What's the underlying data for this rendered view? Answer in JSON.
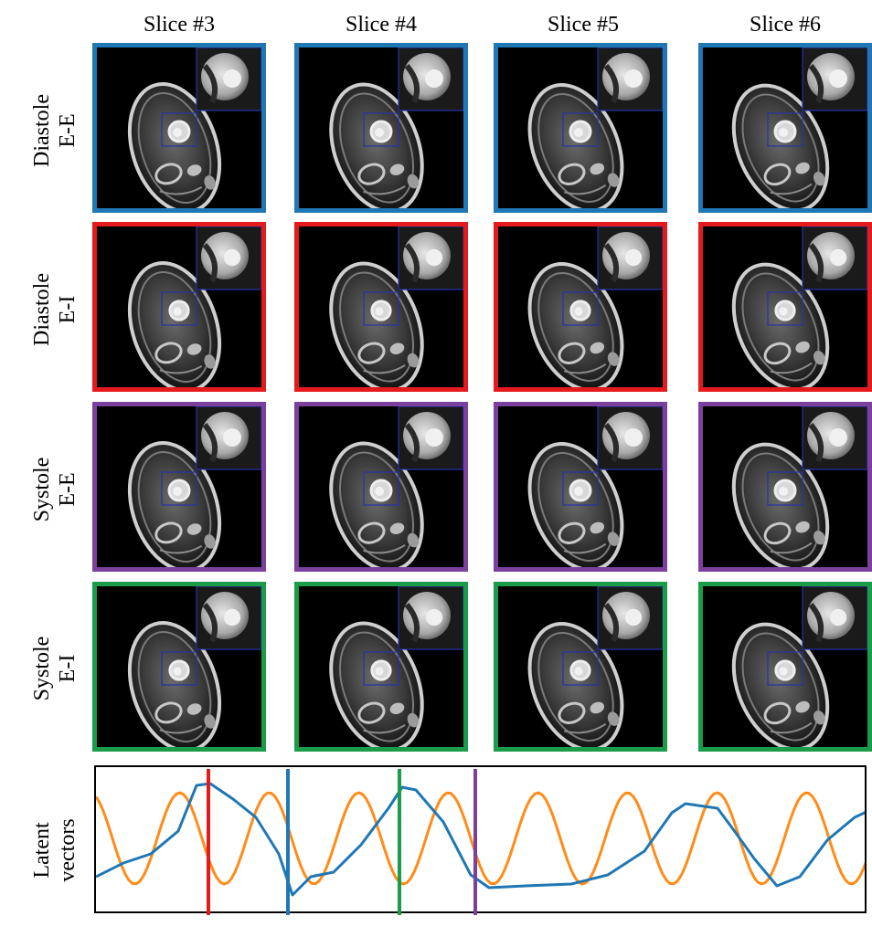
{
  "columns": [
    "Slice #3",
    "Slice #4",
    "Slice #5",
    "Slice #6"
  ],
  "rows": [
    {
      "line1": "Diastole",
      "line2": "E-E",
      "color": "#1f77b4"
    },
    {
      "line1": "Diastole",
      "line2": "E-I",
      "color": "#e41a1c"
    },
    {
      "line1": "Systole",
      "line2": "E-E",
      "color": "#7b3f9e"
    },
    {
      "line1": "Systole",
      "line2": "E-I",
      "color": "#1a9c4a"
    }
  ],
  "latent": {
    "label_line1": "Latent",
    "label_line2": "vectors",
    "series_colors": [
      "#1f77b4",
      "#ff8c1a"
    ],
    "markers": [
      {
        "name": "diastole-e-i",
        "color": "#e41a1c"
      },
      {
        "name": "diastole-e-e",
        "color": "#1f77b4"
      },
      {
        "name": "systole-e-i",
        "color": "#1a9c4a"
      },
      {
        "name": "systole-e-e",
        "color": "#7b3f9e"
      }
    ]
  }
}
